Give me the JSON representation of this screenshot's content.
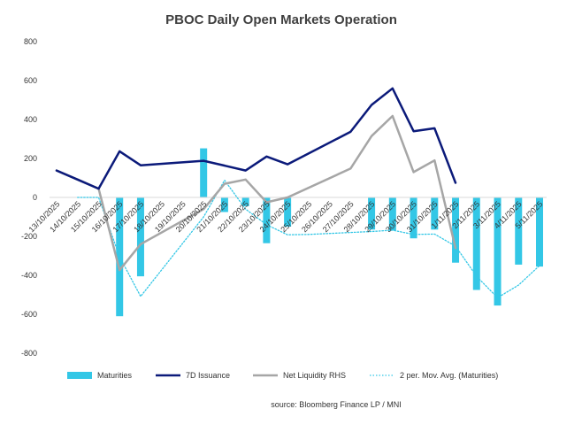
{
  "chart_data": {
    "type": "bar+line",
    "title": "PBOC Daily Open Markets Operation",
    "source": "source:  Bloomberg Finance LP / MNI",
    "ylim": [
      -800,
      800
    ],
    "yticks": [
      -800,
      -600,
      -400,
      -200,
      0,
      200,
      400,
      600,
      800
    ],
    "ytick_labels": [
      "-800",
      "-600",
      "-400",
      "-200",
      "0",
      "200",
      "400",
      "600",
      "800"
    ],
    "grid": false,
    "legend_position": "bottom",
    "categories": [
      "13/10/2025",
      "14/10/2025",
      "15/10/2025",
      "16/10/2025",
      "17/10/2025",
      "18/10/2025",
      "19/10/2025",
      "20/10/2025",
      "21/10/2025",
      "22/10/2025",
      "23/10/2025",
      "24/10/2025",
      "25/10/2025",
      "26/10/2025",
      "27/10/2025",
      "28/10/2025",
      "29/10/2025",
      "30/10/2025",
      "31/10/2025",
      "1/11/2025",
      "2/11/2025",
      "3/11/2025",
      "4/11/2025",
      "5/11/2025"
    ],
    "series": [
      {
        "name": "Maturities",
        "kind": "bar",
        "color": "#33c7e6",
        "points": [
          {
            "x": 3,
            "y": -610
          },
          {
            "x": 4,
            "y": -405
          },
          {
            "x": 7,
            "y": 252
          },
          {
            "x": 8,
            "y": -75
          },
          {
            "x": 9,
            "y": -45
          },
          {
            "x": 10,
            "y": -235
          },
          {
            "x": 11,
            "y": -150
          },
          {
            "x": 15,
            "y": -165
          },
          {
            "x": 16,
            "y": -170
          },
          {
            "x": 17,
            "y": -210
          },
          {
            "x": 18,
            "y": -165
          },
          {
            "x": 19,
            "y": -335
          },
          {
            "x": 20,
            "y": -475
          },
          {
            "x": 21,
            "y": -555
          },
          {
            "x": 22,
            "y": -345
          },
          {
            "x": 23,
            "y": -355
          }
        ]
      },
      {
        "name": "7D Issuance",
        "kind": "line",
        "color": "#0b1a7a",
        "points": [
          {
            "x": 0,
            "y": 138
          },
          {
            "x": 1,
            "y": 92
          },
          {
            "x": 2,
            "y": 45
          },
          {
            "x": 3,
            "y": 237
          },
          {
            "x": 4,
            "y": 165
          },
          {
            "x": 7,
            "y": 188
          },
          {
            "x": 9,
            "y": 138
          },
          {
            "x": 10,
            "y": 210
          },
          {
            "x": 11,
            "y": 170
          },
          {
            "x": 14,
            "y": 337
          },
          {
            "x": 15,
            "y": 475
          },
          {
            "x": 16,
            "y": 560
          },
          {
            "x": 17,
            "y": 340
          },
          {
            "x": 18,
            "y": 355
          },
          {
            "x": 19,
            "y": 75
          }
        ]
      },
      {
        "name": "Net Liquidity RHS",
        "kind": "line",
        "color": "#a6a6a6",
        "points": [
          {
            "x": 0,
            "y": 138
          },
          {
            "x": 1,
            "y": 92
          },
          {
            "x": 2,
            "y": 45
          },
          {
            "x": 3,
            "y": -373
          },
          {
            "x": 4,
            "y": -240
          },
          {
            "x": 7,
            "y": -60
          },
          {
            "x": 8,
            "y": 70
          },
          {
            "x": 9,
            "y": 92
          },
          {
            "x": 10,
            "y": -25
          },
          {
            "x": 11,
            "y": 0
          },
          {
            "x": 14,
            "y": 148
          },
          {
            "x": 15,
            "y": 315
          },
          {
            "x": 16,
            "y": 418
          },
          {
            "x": 17,
            "y": 130
          },
          {
            "x": 18,
            "y": 190
          },
          {
            "x": 19,
            "y": -260
          }
        ]
      },
      {
        "name": "2 per. Mov. Avg. (Maturities)",
        "kind": "line-dotted",
        "color": "#33c7e6",
        "points": [
          {
            "x": 1,
            "y": 0
          },
          {
            "x": 2,
            "y": 0
          },
          {
            "x": 3,
            "y": -305
          },
          {
            "x": 4,
            "y": -508
          },
          {
            "x": 7,
            "y": -100
          },
          {
            "x": 8,
            "y": 88
          },
          {
            "x": 9,
            "y": -60
          },
          {
            "x": 10,
            "y": -140
          },
          {
            "x": 11,
            "y": -192
          },
          {
            "x": 12,
            "y": -190
          },
          {
            "x": 15,
            "y": -175
          },
          {
            "x": 16,
            "y": -168
          },
          {
            "x": 17,
            "y": -190
          },
          {
            "x": 18,
            "y": -188
          },
          {
            "x": 19,
            "y": -250
          },
          {
            "x": 20,
            "y": -405
          },
          {
            "x": 21,
            "y": -515
          },
          {
            "x": 22,
            "y": -450
          },
          {
            "x": 23,
            "y": -350
          }
        ]
      }
    ]
  }
}
